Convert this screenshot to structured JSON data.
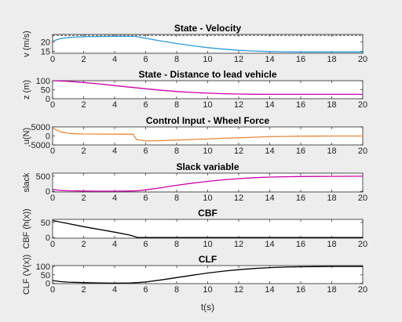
{
  "chart_data": [
    {
      "type": "line",
      "title": "State - Velocity",
      "xlabel": "",
      "ylabel": "v (m/s)",
      "xlim": [
        0,
        20
      ],
      "ylim": [
        14,
        24
      ],
      "yticks": [
        15,
        20
      ],
      "grid": false,
      "refline": {
        "y": 23.5,
        "style": "dashed",
        "color": "#555555"
      },
      "series": [
        {
          "color": "#2e9bd6",
          "x": [
            0,
            0.5,
            1,
            2,
            3,
            4,
            5,
            5.3,
            6,
            7,
            8,
            9,
            10,
            11,
            12,
            13,
            14,
            15,
            16,
            17,
            18,
            19,
            20
          ],
          "y": [
            20.5,
            21.8,
            22.4,
            22.8,
            22.9,
            23.0,
            23.0,
            23.0,
            22.0,
            20.5,
            19.2,
            18.0,
            17.0,
            16.2,
            15.6,
            15.2,
            14.9,
            14.8,
            14.7,
            14.7,
            14.7,
            14.7,
            14.7
          ]
        }
      ]
    },
    {
      "type": "line",
      "title": "State - Distance to lead vehicle",
      "xlabel": "",
      "ylabel": "z (m)",
      "xlim": [
        0,
        20
      ],
      "ylim": [
        0,
        100
      ],
      "yticks": [
        0,
        50,
        100
      ],
      "grid": false,
      "series": [
        {
          "color": "#cc00aa",
          "x": [
            0,
            1,
            2,
            3,
            4,
            5,
            6,
            7,
            8,
            9,
            10,
            11,
            12,
            13,
            14,
            15,
            16,
            17,
            18,
            19,
            20
          ],
          "y": [
            100,
            96,
            90,
            82,
            73,
            64,
            55,
            47,
            40,
            35,
            31,
            28,
            26,
            25,
            24.5,
            24.3,
            24.2,
            24.2,
            24.2,
            24.2,
            24.2
          ]
        }
      ]
    },
    {
      "type": "line",
      "title": "Control Input - Wheel Force",
      "xlabel": "",
      "ylabel": "u(N)",
      "xlim": [
        0,
        20
      ],
      "ylim": [
        -5000,
        5000
      ],
      "yticks": [
        -5000,
        0,
        5000
      ],
      "grid": false,
      "series": [
        {
          "color": "#e8883a",
          "x": [
            0,
            0.2,
            0.5,
            1,
            1.5,
            2,
            3,
            4,
            5,
            5.2,
            5.4,
            6,
            7,
            8,
            9,
            10,
            11,
            12,
            13,
            14,
            15,
            16,
            17,
            18,
            19,
            20
          ],
          "y": [
            4200,
            3500,
            2300,
            1500,
            1200,
            1100,
            1050,
            1000,
            950,
            900,
            -2000,
            -2800,
            -2600,
            -2300,
            -2000,
            -1700,
            -1300,
            -1000,
            -700,
            -400,
            -250,
            -150,
            -80,
            -50,
            -40,
            -40
          ]
        }
      ]
    },
    {
      "type": "line",
      "title": "Slack variable",
      "xlabel": "",
      "ylabel": "slack",
      "xlim": [
        0,
        20
      ],
      "ylim": [
        -20,
        600
      ],
      "yticks": [
        0,
        500
      ],
      "grid": false,
      "series": [
        {
          "color": "#cc00aa",
          "x": [
            0,
            0.5,
            1,
            2,
            3,
            4,
            5,
            5.5,
            6,
            7,
            8,
            9,
            10,
            11,
            12,
            13,
            14,
            15,
            16,
            17,
            18,
            19,
            20
          ],
          "y": [
            60,
            30,
            20,
            10,
            5,
            5,
            10,
            20,
            50,
            120,
            200,
            270,
            330,
            380,
            420,
            450,
            470,
            480,
            488,
            492,
            495,
            497,
            498
          ]
        }
      ]
    },
    {
      "type": "line",
      "title": "CBF",
      "xlabel": "",
      "ylabel": "CBF (h(x))",
      "xlim": [
        0,
        20
      ],
      "ylim": [
        -2,
        60
      ],
      "yticks": [
        0,
        50
      ],
      "grid": false,
      "series": [
        {
          "color": "#000000",
          "x": [
            0,
            1,
            2,
            3,
            4,
            5,
            5.5,
            6,
            8,
            10,
            12,
            14,
            16,
            18,
            20
          ],
          "y": [
            56,
            46,
            36,
            27,
            18,
            8,
            0,
            0,
            0,
            0,
            0,
            0,
            0,
            0,
            0
          ]
        }
      ]
    },
    {
      "type": "line",
      "title": "CLF",
      "xlabel": "t(s)",
      "ylabel": "CLF (V(x))",
      "xlim": [
        0,
        20
      ],
      "ylim": [
        -2,
        105
      ],
      "yticks": [
        0,
        50,
        100
      ],
      "xticks": [
        0,
        2,
        4,
        6,
        8,
        10,
        12,
        14,
        16,
        18,
        20
      ],
      "grid": false,
      "series": [
        {
          "color": "#000000",
          "x": [
            0,
            0.5,
            1,
            2,
            3,
            4,
            5,
            5.5,
            6,
            7,
            8,
            9,
            10,
            11,
            12,
            13,
            14,
            15,
            16,
            17,
            18,
            19,
            20
          ],
          "y": [
            16,
            10,
            7,
            4,
            2,
            1,
            2,
            4,
            8,
            20,
            34,
            48,
            61,
            72,
            81,
            88,
            93,
            96,
            98,
            99,
            100,
            100,
            100
          ]
        }
      ]
    }
  ]
}
